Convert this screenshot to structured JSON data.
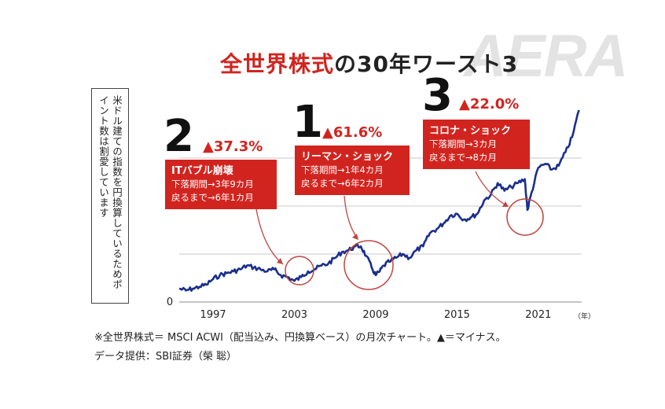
{
  "title_red": "全世界株式",
  "title_black": "の30年ワースト3",
  "brand": "AERA",
  "note": "米ドル建ての指数を円換算しているためポイント数は割愛しています",
  "footer": {
    "line1": "※全世界株式＝ MSCI ACWI（配当込み、円換算ベース）の月次チャート。▲＝マイナス。",
    "line2": "データ提供：SBI証券（榮 聡）"
  },
  "events": [
    {
      "rank": "2",
      "drop": "▲37.3%",
      "name": "ITバブル崩壊",
      "decline": "下落期間→3年9カ月",
      "recovery": "戻るまで→6年1カ月"
    },
    {
      "rank": "1",
      "drop": "▲61.6%",
      "name": "リーマン・ショック",
      "decline": "下落期間→1年4カ月",
      "recovery": "戻るまで→6年2カ月"
    },
    {
      "rank": "3",
      "drop": "▲22.0%",
      "name": "コロナ・ショック",
      "decline": "下落期間→3カ月",
      "recovery": "戻るまで→8カ月"
    }
  ],
  "colors": {
    "line": "#1a2f8c",
    "accent": "#d2241f",
    "grid": "#c8c8c8"
  },
  "chart_data": {
    "type": "line",
    "x_ticks": [
      "1997",
      "2003",
      "2009",
      "2015",
      "2021"
    ],
    "x_unit": "（年）",
    "y_ticks": [
      "0"
    ],
    "ylim": [
      0,
      1
    ],
    "grid": true,
    "series": [
      {
        "x": [
          1994.5,
          1995,
          1995.5,
          1996,
          1996.5,
          1997,
          1997.5,
          1998,
          1998.5,
          1999,
          1999.5,
          2000,
          2000.5,
          2001,
          2001.5,
          2002,
          2002.5,
          2003,
          2003.5,
          2004,
          2004.5,
          2005,
          2005.5,
          2006,
          2006.5,
          2007,
          2007.5,
          2007.9,
          2008.3,
          2008.7,
          2009.0,
          2009.3,
          2009.6,
          2010,
          2010.5,
          2011,
          2011.5,
          2012,
          2012.5,
          2013,
          2013.5,
          2014,
          2014.5,
          2015,
          2015.5,
          2016,
          2016.5,
          2017,
          2017.5,
          2018,
          2018.5,
          2019,
          2019.5,
          2020.0,
          2020.2,
          2020.5,
          2021,
          2021.5,
          2022,
          2022.5,
          2023,
          2023.5,
          2024.0
        ],
        "values": [
          0.07,
          0.06,
          0.07,
          0.08,
          0.09,
          0.12,
          0.14,
          0.15,
          0.16,
          0.17,
          0.19,
          0.18,
          0.17,
          0.16,
          0.17,
          0.14,
          0.13,
          0.11,
          0.13,
          0.16,
          0.17,
          0.19,
          0.2,
          0.23,
          0.26,
          0.27,
          0.29,
          0.29,
          0.24,
          0.18,
          0.14,
          0.16,
          0.19,
          0.21,
          0.23,
          0.25,
          0.23,
          0.27,
          0.29,
          0.36,
          0.38,
          0.41,
          0.45,
          0.46,
          0.43,
          0.44,
          0.46,
          0.53,
          0.56,
          0.62,
          0.58,
          0.6,
          0.62,
          0.64,
          0.48,
          0.57,
          0.7,
          0.72,
          0.69,
          0.71,
          0.78,
          0.86,
          1.0
        ]
      }
    ]
  }
}
